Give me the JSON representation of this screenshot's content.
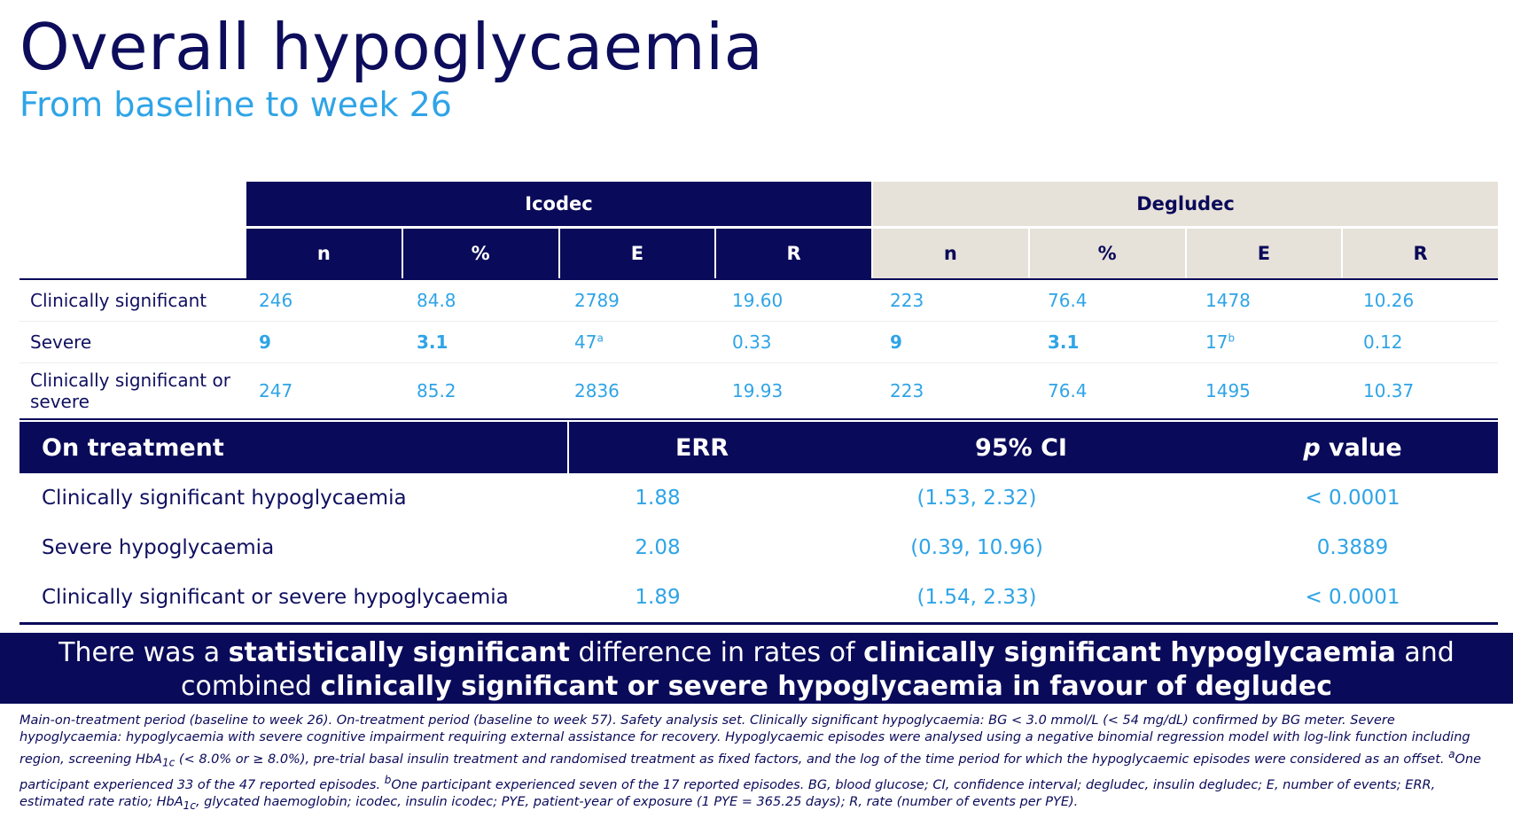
{
  "title": "Overall hypoglycaemia",
  "subtitle": "From baseline to week 26",
  "table1": {
    "groups": [
      "Icodec",
      "Degludec"
    ],
    "subheaders": [
      "n",
      "%",
      "E",
      "R"
    ],
    "rows": [
      {
        "label": "Clinically significant",
        "icodec": [
          "246",
          "84.8",
          "2789",
          "19.60"
        ],
        "degludec": [
          "223",
          "76.4",
          "1478",
          "10.26"
        ]
      },
      {
        "label": "Severe",
        "icodec": [
          "9",
          "3.1",
          "47",
          "0.33"
        ],
        "degludec": [
          "9",
          "3.1",
          "17",
          "0.12"
        ],
        "icodec_E_sup": "a",
        "degludec_E_sup": "b"
      },
      {
        "label": "Clinically significant or severe",
        "icodec": [
          "247",
          "85.2",
          "2836",
          "19.93"
        ],
        "degludec": [
          "223",
          "76.4",
          "1495",
          "10.37"
        ]
      }
    ]
  },
  "table2": {
    "headers": [
      "On treatment",
      "ERR",
      "95% CI",
      "p value"
    ],
    "header_p": "p",
    "header_value": " value",
    "rows": [
      {
        "label": "Clinically significant hypoglycaemia",
        "err": "1.88",
        "ci": "(1.53, 2.32)",
        "p": "< 0.0001"
      },
      {
        "label": "Severe hypoglycaemia",
        "err": "2.08",
        "ci": "(0.39, 10.96)",
        "p": "0.3889"
      },
      {
        "label": "Clinically significant or severe hypoglycaemia",
        "err": "1.89",
        "ci": "(1.54, 2.33)",
        "p": "< 0.0001"
      }
    ]
  },
  "banner": {
    "t1": "There was a ",
    "b1": "statistically significant",
    "t2": " difference in rates of ",
    "b2": "clinically significant hypoglycaemia",
    "t3": " and combined ",
    "b3": "clinically significant or severe hypoglycaemia in favour of degludec"
  },
  "footnote": {
    "p1": "Main-on-treatment period (baseline to week 26). On-treatment period (baseline to week 57). Safety analysis set. Clinically significant hypoglycaemia: BG < 3.0 mmol/L (< 54 mg/dL) confirmed by BG meter. Severe hypoglycaemia: hypoglycaemia with severe cognitive impairment requiring external assistance for recovery. Hypoglycaemic episodes were analysed using a negative binomial regression model with log-link function including region, screening HbA",
    "s1": "1c",
    "p2": " (< 8.0% or ≥ 8.0%), pre-trial basal insulin treatment and randomised treatment as fixed factors, and the log of the time period for which the hypoglycaemic episodes were considered as an offset. ",
    "sa": "a",
    "p3": "One participant experienced 33 of the 47 reported episodes. ",
    "sb": "b",
    "p4": "One participant experienced seven of the 17 reported episodes. BG, blood glucose; CI, confidence interval; degludec, insulin degludec; E, number of events; ERR, estimated rate ratio; HbA",
    "s2": "1c",
    "p5": ", glycated haemoglobin; icodec, insulin icodec; PYE, patient-year of exposure (1 PYE = 365.25 days); R, rate (number of events per PYE)."
  }
}
